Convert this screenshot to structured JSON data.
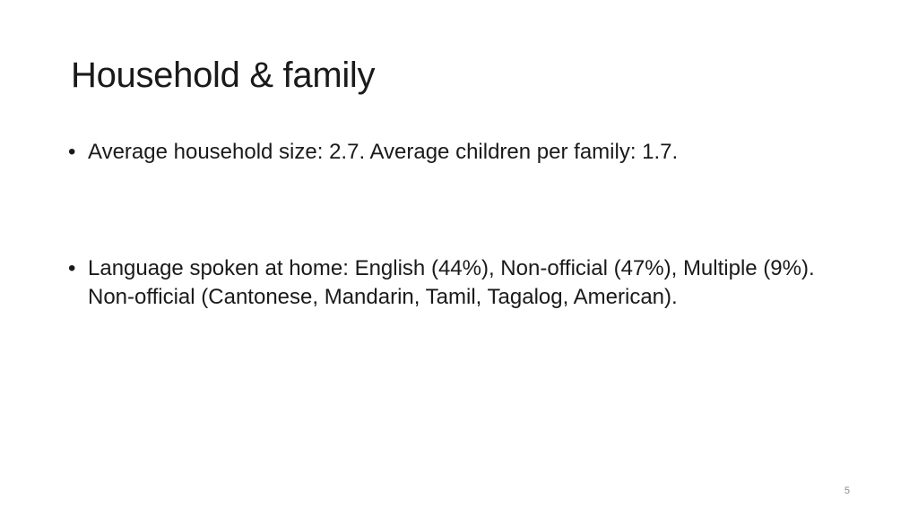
{
  "slide": {
    "title": "Household & family",
    "bullets": [
      {
        "marker": "•",
        "text": "Average household size: 2.7. Average children per family: 1.7."
      },
      {
        "marker": "•",
        "text": "Language spoken at home: English (44%), Non-official (47%), Multiple (9%). Non-official (Cantonese, Mandarin, Tamil, Tagalog, American)."
      }
    ],
    "page_number": "5"
  }
}
